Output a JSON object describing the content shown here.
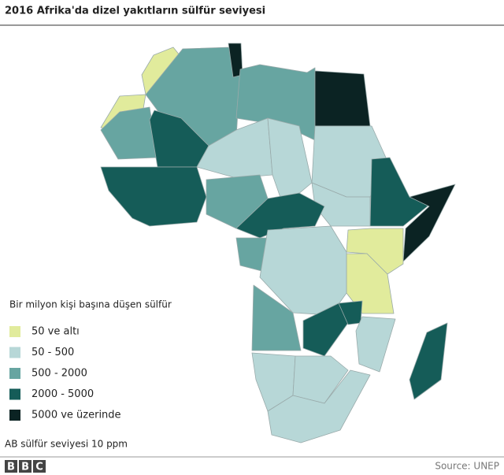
{
  "header": {
    "title": "2016 Afrika'da dizel yakıtların sülfür seviyesi"
  },
  "legend": {
    "title": "Bir milyon kişi başına düşen sülfür",
    "items": [
      {
        "label": "50 ve altı",
        "color": "#e1eb9c"
      },
      {
        "label": "50 - 500",
        "color": "#b7d7d7"
      },
      {
        "label": "500 - 2000",
        "color": "#67a5a1"
      },
      {
        "label": "2000 - 5000",
        "color": "#155c58"
      },
      {
        "label": "5000 ve üzerinde",
        "color": "#0b2323"
      }
    ]
  },
  "note": "AB sülfür seviyesi 10 ppm",
  "footer": {
    "logo": "BBC",
    "source": "Source: UNEP"
  }
}
